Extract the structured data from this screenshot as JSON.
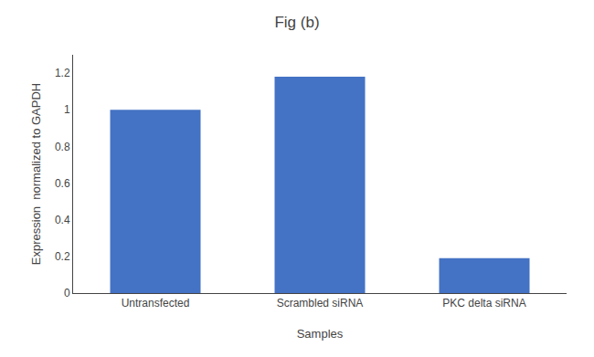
{
  "chart_data": {
    "type": "bar",
    "title": "Fig (b)",
    "x_label": "Samples",
    "y_label": "Expression  normalized to GAPDH",
    "categories": [
      "Untransfected",
      "Scrambled siRNA",
      "PKC delta siRNA"
    ],
    "values": [
      1.0,
      1.18,
      0.19
    ],
    "color": "#4472c4",
    "ylim": [
      0,
      1.3
    ],
    "yticks": [
      0,
      0.2,
      0.4,
      0.6,
      0.8,
      1,
      1.2
    ],
    "grid": false
  }
}
